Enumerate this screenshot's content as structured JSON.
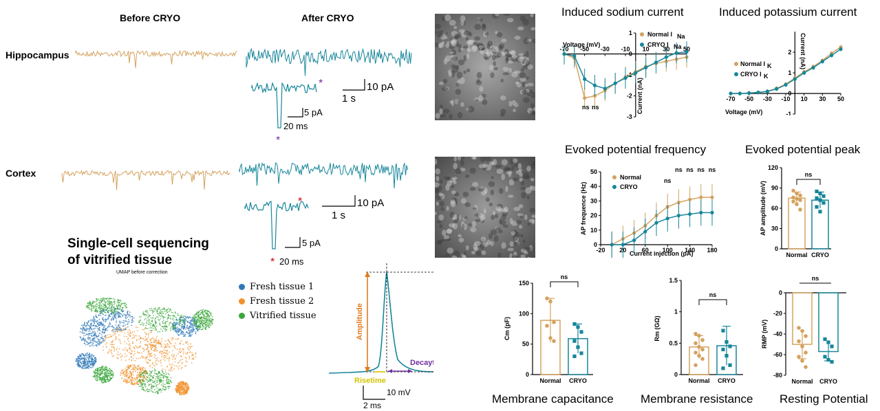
{
  "traces": {
    "col_before": "Before CRYO",
    "col_after": "After CRYO",
    "row_hippo": "Hippocampus",
    "row_cortex": "Cortex",
    "scale_pA": "10 pA",
    "scale_s": "1 s",
    "inset_pA": "5 pA",
    "inset_ms": "20 ms",
    "star": "*"
  },
  "colors": {
    "normal": "#d4a25e",
    "cryo": "#16869a",
    "orange": "#e07b1e",
    "yellow": "#d4c400",
    "purple": "#7030a0",
    "red": "#d00000"
  },
  "umap": {
    "heading1": "Single-cell sequencing",
    "heading2": "of vitrified tissue",
    "subtitle": "UMAP before correction",
    "legend": [
      {
        "label": "Fresh tissue 1",
        "color": "#2f78b7"
      },
      {
        "label": "Fresh tissue 2",
        "color": "#f0922b"
      },
      {
        "label": "Vitrified tissue",
        "color": "#3aa73a"
      }
    ]
  },
  "spike": {
    "amplitude": "Amplitude",
    "risetime": "Risetime",
    "decaytime": "Decaytime",
    "scale_mv": "10 mV",
    "scale_ms": "2 ms"
  },
  "titles": {
    "sodium": "Induced sodium current",
    "potassium": "Induced potassium current",
    "frequency": "Evoked potential frequency",
    "peak": "Evoked potential peak",
    "cap": "Membrane capacitance",
    "res": "Membrane resistance",
    "rmp": "Resting Potential"
  },
  "chart_data": [
    {
      "id": "sodium",
      "type": "line",
      "xlabel": "Voltage (mV)",
      "ylabel": "Current (nA)",
      "xticks": [
        -70,
        -50,
        -30,
        -10,
        10,
        30,
        50
      ],
      "yticks": [
        1,
        0,
        -1,
        -2,
        -3
      ],
      "ylim": [
        -3,
        1
      ],
      "xlim": [
        -70,
        50
      ],
      "x": [
        -70,
        -60,
        -50,
        -40,
        -30,
        -20,
        -10,
        0,
        10,
        20,
        30,
        40,
        50
      ],
      "series": [
        {
          "name": "Normal INa",
          "values": [
            0,
            -0.2,
            -2.1,
            -2.0,
            -1.75,
            -1.4,
            -1.1,
            -0.85,
            -0.6,
            -0.45,
            -0.35,
            -0.25,
            -0.15
          ]
        },
        {
          "name": "CRYO INa",
          "values": [
            0,
            -0.1,
            -1.2,
            -1.5,
            -1.65,
            -1.4,
            -1.15,
            -0.9,
            -0.65,
            -0.4,
            -0.15,
            0.05,
            0.1
          ]
        }
      ],
      "annotations": [
        "ns",
        "ns"
      ],
      "legend": [
        "Normal I",
        "Na",
        "CRYO I",
        "Na"
      ]
    },
    {
      "id": "potassium",
      "type": "line",
      "xlabel": "Voltage (mV)",
      "ylabel": "Current (nA)",
      "xticks": [
        -70,
        -50,
        -30,
        -10,
        10,
        30,
        50
      ],
      "yticks": [
        2,
        1,
        0,
        -1
      ],
      "ylim": [
        -1,
        3
      ],
      "xlim": [
        -70,
        50
      ],
      "x": [
        -70,
        -60,
        -50,
        -40,
        -30,
        -20,
        -10,
        0,
        10,
        20,
        30,
        40,
        50
      ],
      "series": [
        {
          "name": "Normal IK",
          "values": [
            0,
            0,
            0.02,
            0.05,
            0.1,
            0.25,
            0.45,
            0.75,
            1.05,
            1.3,
            1.6,
            1.95,
            2.25
          ]
        },
        {
          "name": "CRYO IK",
          "values": [
            0,
            0,
            0.02,
            0.05,
            0.1,
            0.22,
            0.42,
            0.7,
            1.0,
            1.25,
            1.55,
            1.85,
            2.15
          ]
        }
      ],
      "legend": [
        "Normal I",
        "K",
        "CRYO I",
        "K"
      ]
    },
    {
      "id": "frequency",
      "type": "line",
      "xlabel": "Current injection (pA)",
      "ylabel": "AP frequence (Hz)",
      "xticks": [
        -20,
        20,
        60,
        100,
        140,
        180
      ],
      "yticks": [
        0,
        10,
        20,
        30,
        40,
        50
      ],
      "ylim": [
        0,
        50
      ],
      "xlim": [
        -20,
        180
      ],
      "x": [
        0,
        20,
        40,
        60,
        80,
        100,
        120,
        140,
        160,
        180
      ],
      "series": [
        {
          "name": "Normal",
          "values": [
            0,
            4,
            8,
            13,
            20,
            26,
            29,
            31,
            32.5,
            32.5
          ]
        },
        {
          "name": "CRYO",
          "values": [
            0,
            0,
            3,
            9,
            15,
            18,
            20,
            21,
            22,
            22
          ]
        }
      ],
      "annotations": [
        "ns",
        "ns",
        "ns",
        "ns",
        "ns"
      ]
    },
    {
      "id": "peak",
      "type": "bar",
      "ylabel": "AP amplitude (mV)",
      "categories": [
        "Normal",
        "CRYO"
      ],
      "values": [
        75,
        72
      ],
      "errors": [
        9,
        12
      ],
      "ylim": [
        0,
        120
      ],
      "yticks": [
        0,
        30,
        60,
        90,
        120
      ],
      "annotation": "ns",
      "points": [
        [
          86,
          82,
          79,
          76,
          74,
          72,
          70,
          66,
          58
        ],
        [
          85,
          82,
          78,
          75,
          72,
          68,
          62,
          55
        ]
      ]
    },
    {
      "id": "cap",
      "type": "bar",
      "ylabel": "Cm (pF)",
      "categories": [
        "Normal",
        "CRYO"
      ],
      "values": [
        89,
        59
      ],
      "errors": [
        36,
        24
      ],
      "ylim": [
        0,
        150
      ],
      "yticks": [
        0,
        50,
        100,
        150
      ],
      "annotation": "ns",
      "points": [
        [
          125,
          120,
          86,
          80,
          60,
          55
        ],
        [
          83,
          78,
          70,
          55,
          45,
          35,
          30
        ]
      ]
    },
    {
      "id": "res",
      "type": "bar",
      "ylabel": "Rm (GΩ)",
      "categories": [
        "Normal",
        "CRYO"
      ],
      "values": [
        0.44,
        0.46
      ],
      "errors": [
        0.18,
        0.31
      ],
      "ylim": [
        0,
        1.5
      ],
      "yticks": [
        0.0,
        0.5,
        1.0,
        1.5
      ],
      "annotation": "ns",
      "points": [
        [
          0.65,
          0.62,
          0.55,
          0.5,
          0.44,
          0.4,
          0.35,
          0.3,
          0.25,
          0.15
        ],
        [
          0.7,
          0.52,
          0.45,
          0.4,
          0.3,
          0.15,
          0.1
        ]
      ]
    },
    {
      "id": "rmp",
      "type": "bar",
      "ylabel": "RMP (mV)",
      "categories": [
        "Normal",
        "CRYO"
      ],
      "values": [
        -50,
        -57
      ],
      "errors": [
        14,
        9
      ],
      "ylim": [
        -80,
        0
      ],
      "yticks": [
        0,
        -20,
        -40,
        -60,
        -80
      ],
      "annotation": "ns",
      "points": [
        [
          -34,
          -37,
          -42,
          -47,
          -52,
          -58,
          -62,
          -66,
          -72
        ],
        [
          -45,
          -48,
          -52,
          -62,
          -65,
          -67
        ]
      ]
    }
  ]
}
